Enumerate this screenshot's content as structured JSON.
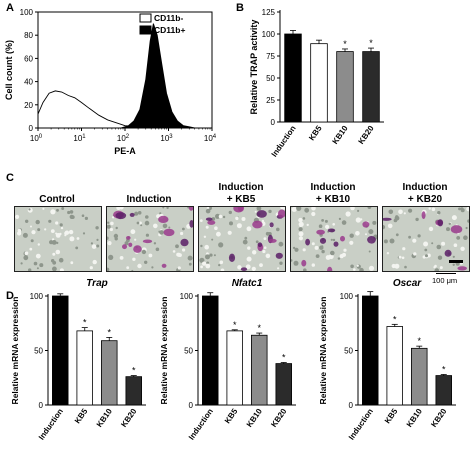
{
  "panels": {
    "a": "A",
    "b": "B",
    "c": "C",
    "d": "D"
  },
  "colors": {
    "black": "#000000",
    "white": "#ffffff",
    "gray": "#8c8c8c",
    "darkgray": "#2b2b2b"
  },
  "chart_data": [
    {
      "type": "area",
      "panel": "A",
      "xlabel": "PE-A",
      "ylabel": "Cell count (%)",
      "x_scale": "log",
      "xlim": [
        1,
        10000
      ],
      "ylim": [
        0,
        100
      ],
      "x_tick_labels": [
        "10^0",
        "10^1",
        "10^2",
        "10^3",
        "10^4"
      ],
      "y_tick_labels": [
        "0",
        "20",
        "40",
        "60",
        "80",
        "100"
      ],
      "legend": "top-right",
      "series": [
        {
          "name": "CD11b-",
          "fill": "white",
          "x": [
            1,
            1.3,
            1.8,
            2.5,
            3.5,
            5,
            7,
            10,
            15,
            25,
            40,
            70,
            100,
            200,
            400
          ],
          "y": [
            12,
            22,
            30,
            32,
            31,
            28,
            26,
            22,
            17,
            11,
            7,
            4,
            2,
            1,
            0
          ]
        },
        {
          "name": "CD11b+",
          "fill": "black",
          "x": [
            80,
            120,
            160,
            220,
            300,
            380,
            450,
            550,
            700,
            900,
            1200,
            1600,
            2200,
            3000,
            4000
          ],
          "y": [
            0,
            2,
            6,
            16,
            42,
            75,
            90,
            80,
            55,
            30,
            14,
            6,
            2,
            1,
            0
          ]
        }
      ]
    },
    {
      "type": "bar",
      "panel": "B",
      "ylabel": "Relative TRAP activity",
      "ylim": [
        0,
        125
      ],
      "y_tick_labels": [
        "0",
        "25",
        "50",
        "75",
        "100",
        "125"
      ],
      "categories": [
        "Induction",
        "KB5",
        "KB10",
        "KB20"
      ],
      "values": [
        100,
        89,
        80,
        80
      ],
      "errors": [
        4,
        4,
        3,
        4
      ],
      "significant": [
        "",
        "",
        "*",
        "*"
      ]
    },
    {
      "type": "bar",
      "panel": "D",
      "title": "Trap",
      "ylabel": "Relative mRNA expression",
      "ylim": [
        0,
        100
      ],
      "y_tick_labels": [
        "0",
        "50",
        "100"
      ],
      "categories": [
        "Induction",
        "KB5",
        "KB10",
        "KB20"
      ],
      "values": [
        100,
        68,
        59,
        26
      ],
      "errors": [
        2,
        3,
        3,
        1
      ],
      "significant": [
        "",
        "*",
        "*",
        "*"
      ]
    },
    {
      "type": "bar",
      "panel": "D",
      "title": "Nfatc1",
      "ylabel": "Relative mRNA expression",
      "ylim": [
        0,
        100
      ],
      "y_tick_labels": [
        "0",
        "50",
        "100"
      ],
      "categories": [
        "Induction",
        "KB5",
        "KB10",
        "KB20"
      ],
      "values": [
        100,
        68,
        64,
        38
      ],
      "errors": [
        3,
        1,
        2,
        1
      ],
      "significant": [
        "",
        "*",
        "*",
        "*"
      ]
    },
    {
      "type": "bar",
      "panel": "D",
      "title": "Oscar",
      "ylabel": "Relative mRNA expression",
      "ylim": [
        0,
        100
      ],
      "y_tick_labels": [
        "0",
        "50",
        "100"
      ],
      "categories": [
        "Induction",
        "KB5",
        "KB10",
        "KB20"
      ],
      "values": [
        100,
        72,
        52,
        27
      ],
      "errors": [
        4,
        2,
        2,
        1
      ],
      "significant": [
        "",
        "*",
        "*",
        "*"
      ]
    }
  ],
  "micrographs": {
    "titles": [
      "Control",
      "Induction",
      "Induction\n+ KB5",
      "Induction\n+ KB10",
      "Induction\n+ KB20"
    ],
    "scale_bar_label": "100 μm",
    "stain_density": [
      0,
      14,
      16,
      10,
      7
    ]
  }
}
